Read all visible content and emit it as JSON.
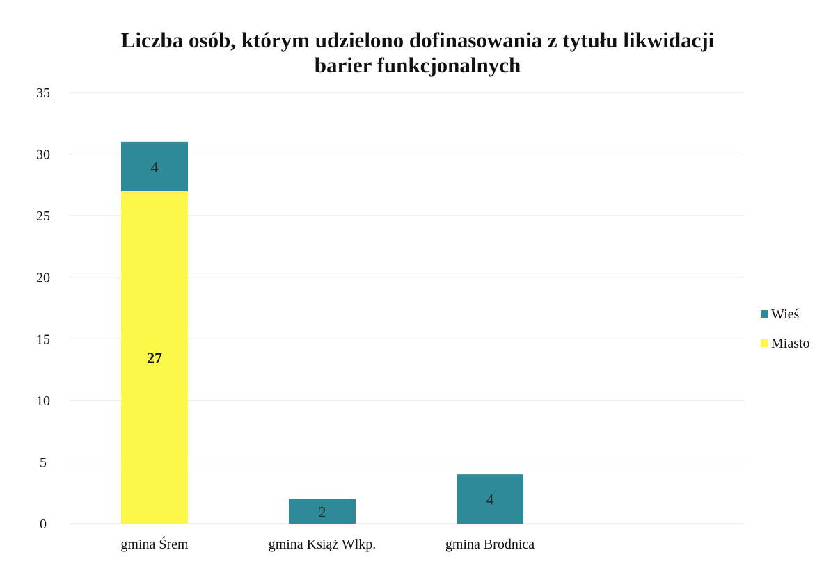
{
  "chart_data": {
    "type": "bar",
    "stacked": true,
    "title_lines": [
      "Liczba osób, którym udzielono dofinasowania z tytułu likwidacji",
      "barier funkcjonalnych"
    ],
    "categories": [
      "gmina Śrem",
      "gmina Książ Wlkp.",
      "gmina Brodnica"
    ],
    "series": [
      {
        "name": "Miasto",
        "color": "#fbf74b",
        "values": [
          27,
          0,
          0
        ]
      },
      {
        "name": "Wieś",
        "color": "#2f8a97",
        "values": [
          4,
          2,
          4
        ]
      }
    ],
    "data_labels": [
      {
        "category": 0,
        "series": 0,
        "text": "27"
      },
      {
        "category": 0,
        "series": 1,
        "text": "4"
      },
      {
        "category": 1,
        "series": 1,
        "text": "2"
      },
      {
        "category": 2,
        "series": 1,
        "text": "4"
      }
    ],
    "y_ticks": [
      "0",
      "5",
      "10",
      "15",
      "20",
      "25",
      "30",
      "35"
    ],
    "ylim": [
      0,
      35
    ],
    "grid": true,
    "legend": {
      "placement": "right",
      "entries": [
        "Wieś",
        "Miasto"
      ]
    }
  }
}
